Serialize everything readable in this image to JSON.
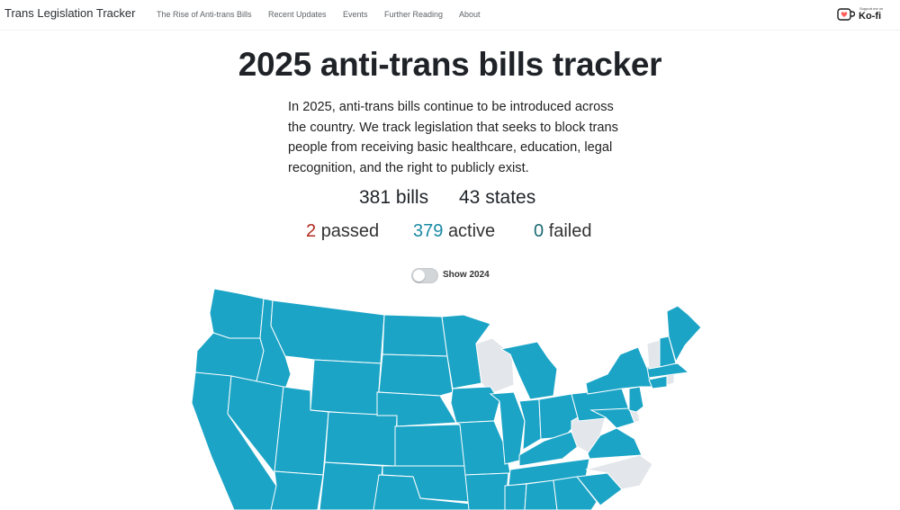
{
  "nav": {
    "brand": "Trans Legislation Tracker",
    "links": [
      "The Rise of Anti-trans Bills",
      "Recent Updates",
      "Events",
      "Further Reading",
      "About"
    ],
    "kofi": {
      "small": "Support me on",
      "big": "Ko-fi"
    }
  },
  "page": {
    "title": "2025 anti-trans bills tracker",
    "intro": "In 2025, anti-trans bills continue to be introduced across the country. We track legislation that seeks to block trans people from receiving basic healthcare, education, legal recognition, and the right to publicly exist."
  },
  "stats": {
    "bills_count": "381",
    "bills_label": "bills",
    "states_count": "43",
    "states_label": "states",
    "passed_count": "2",
    "passed_label": "passed",
    "active_count": "379",
    "active_label": "active",
    "failed_count": "0",
    "failed_label": "failed"
  },
  "toggle": {
    "label": "Show 2024",
    "checked": false
  },
  "colors": {
    "active_state": "#1ba4c6",
    "no_bill_state": "#e3e6ea",
    "passed": "#b32a1e",
    "active": "#1b8aa5",
    "failed": "#1c6a72"
  },
  "map": {
    "states_without_bills": [
      "Wisconsin",
      "West Virginia",
      "North Carolina",
      "Vermont",
      "Rhode Island",
      "Delaware"
    ]
  }
}
